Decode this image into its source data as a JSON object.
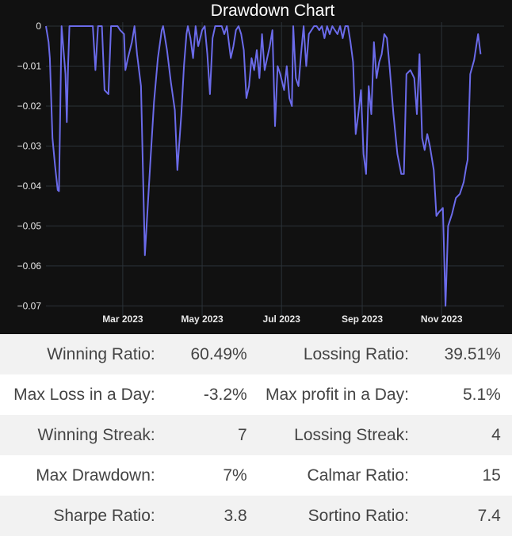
{
  "chart_data": {
    "type": "line",
    "title": "Drawdown Chart",
    "xlabel": "",
    "ylabel": "",
    "x_ticks": [
      "Mar 2023",
      "May 2023",
      "Jul 2023",
      "Sep 2023",
      "Nov 2023"
    ],
    "x_tick_days": [
      59,
      120,
      181,
      243,
      304
    ],
    "y_ticks": [
      "0",
      "−0.01",
      "−0.02",
      "−0.03",
      "−0.04",
      "−0.05",
      "−0.06",
      "−0.07"
    ],
    "ylim": [
      -0.0725,
      0.001
    ],
    "x_day_range": [
      0,
      352
    ],
    "grid": true,
    "line_color": "#6b6bea",
    "series": [
      {
        "values": [
          [
            0,
            0
          ],
          [
            2,
            -0.004
          ],
          [
            3,
            -0.008
          ],
          [
            5,
            -0.028
          ],
          [
            7,
            -0.035
          ],
          [
            9,
            -0.041
          ],
          [
            10,
            -0.0413
          ],
          [
            12,
            -0.0
          ],
          [
            15,
            -0.012
          ],
          [
            16,
            -0.024
          ],
          [
            17,
            -0.01
          ],
          [
            18,
            0
          ],
          [
            20,
            0
          ],
          [
            25,
            0
          ],
          [
            28,
            0
          ],
          [
            30,
            0
          ],
          [
            33,
            0
          ],
          [
            36,
            0
          ],
          [
            38,
            -0.011
          ],
          [
            40,
            0
          ],
          [
            43,
            0
          ],
          [
            45,
            -0.016
          ],
          [
            48,
            -0.017
          ],
          [
            50,
            0
          ],
          [
            55,
            0
          ],
          [
            57,
            -0.001
          ],
          [
            60,
            -0.002
          ],
          [
            61,
            -0.011
          ],
          [
            63,
            -0.008
          ],
          [
            66,
            -0.004
          ],
          [
            68,
            0
          ],
          [
            70,
            -0.007
          ],
          [
            73,
            -0.015
          ],
          [
            76,
            -0.0573
          ],
          [
            80,
            -0.035
          ],
          [
            83,
            -0.019
          ],
          [
            86,
            -0.008
          ],
          [
            89,
            -0.001
          ],
          [
            90,
            0
          ],
          [
            93,
            -0.006
          ],
          [
            96,
            -0.014
          ],
          [
            99,
            -0.021
          ],
          [
            101,
            -0.036
          ],
          [
            104,
            -0.022
          ],
          [
            106,
            -0.01
          ],
          [
            108,
            -0.002
          ],
          [
            109,
            0
          ],
          [
            111,
            -0.003
          ],
          [
            113,
            -0.008
          ],
          [
            115,
            0
          ],
          [
            117,
            -0.005
          ],
          [
            120,
            -0.001
          ],
          [
            122,
            0
          ],
          [
            124,
            -0.007
          ],
          [
            126,
            -0.017
          ],
          [
            128,
            -0.003
          ],
          [
            130,
            0
          ],
          [
            135,
            0
          ],
          [
            137,
            -0.002
          ],
          [
            139,
            0
          ],
          [
            142,
            -0.008
          ],
          [
            144,
            -0.005
          ],
          [
            146,
            -0.001
          ],
          [
            148,
            0
          ],
          [
            150,
            -0.002
          ],
          [
            152,
            -0.006
          ],
          [
            154,
            -0.018
          ],
          [
            156,
            -0.015
          ],
          [
            158,
            -0.008
          ],
          [
            160,
            -0.011
          ],
          [
            162,
            -0.006
          ],
          [
            164,
            -0.013
          ],
          [
            166,
            -0.002
          ],
          [
            168,
            -0.011
          ],
          [
            170,
            -0.008
          ],
          [
            172,
            -0.005
          ],
          [
            174,
            -0.001
          ],
          [
            176,
            -0.025
          ],
          [
            178,
            -0.01
          ],
          [
            180,
            -0.012
          ],
          [
            183,
            -0.016
          ],
          [
            185,
            -0.01
          ],
          [
            187,
            -0.018
          ],
          [
            189,
            -0.02
          ],
          [
            190,
            0
          ],
          [
            192,
            -0.013
          ],
          [
            194,
            -0.015
          ],
          [
            196,
            -0.007
          ],
          [
            198,
            0
          ],
          [
            200,
            -0.01
          ],
          [
            202,
            -0.002
          ],
          [
            204,
            -0.001
          ],
          [
            206,
            0
          ],
          [
            208,
            0
          ],
          [
            210,
            -0.001
          ],
          [
            212,
            0
          ],
          [
            214,
            -0.003
          ],
          [
            216,
            0
          ],
          [
            218,
            -0.002
          ],
          [
            220,
            0
          ],
          [
            222,
            -0.001
          ],
          [
            224,
            -0.002
          ],
          [
            226,
            0
          ],
          [
            228,
            -0.003
          ],
          [
            230,
            0
          ],
          [
            232,
            0
          ],
          [
            234,
            -0.004
          ],
          [
            236,
            -0.009
          ],
          [
            238,
            -0.027
          ],
          [
            240,
            -0.022
          ],
          [
            242,
            -0.016
          ],
          [
            244,
            -0.032
          ],
          [
            246,
            -0.037
          ],
          [
            248,
            -0.015
          ],
          [
            250,
            -0.022
          ],
          [
            252,
            -0.004
          ],
          [
            254,
            -0.013
          ],
          [
            256,
            -0.009
          ],
          [
            258,
            -0.007
          ],
          [
            260,
            -0.002
          ],
          [
            262,
            -0.003
          ],
          [
            264,
            -0.01
          ],
          [
            267,
            -0.022
          ],
          [
            270,
            -0.032
          ],
          [
            273,
            -0.037
          ],
          [
            275,
            -0.037
          ],
          [
            277,
            -0.012
          ],
          [
            280,
            -0.011
          ],
          [
            283,
            -0.013
          ],
          [
            285,
            -0.022
          ],
          [
            287,
            -0.007
          ],
          [
            289,
            -0.028
          ],
          [
            291,
            -0.031
          ],
          [
            293,
            -0.027
          ],
          [
            295,
            -0.03
          ],
          [
            298,
            -0.036
          ],
          [
            300,
            -0.0475
          ],
          [
            302,
            -0.0465
          ],
          [
            305,
            -0.0455
          ],
          [
            307,
            -0.07
          ],
          [
            309,
            -0.05
          ],
          [
            312,
            -0.047
          ],
          [
            315,
            -0.043
          ],
          [
            318,
            -0.042
          ],
          [
            321,
            -0.039
          ],
          [
            323,
            -0.035
          ],
          [
            324,
            -0.0335
          ],
          [
            326,
            -0.012
          ],
          [
            329,
            -0.0085
          ],
          [
            332,
            -0.002
          ],
          [
            334,
            -0.007
          ]
        ]
      }
    ]
  },
  "stats": {
    "rows": [
      {
        "l1": "Winning Ratio:",
        "v1": "60.49%",
        "l2": "Lossing Ratio:",
        "v2": "39.51%"
      },
      {
        "l1": "Max Loss in a Day:",
        "v1": "-3.2%",
        "l2": "Max profit in a Day:",
        "v2": "5.1%"
      },
      {
        "l1": "Winning Streak:",
        "v1": "7",
        "l2": "Lossing Streak:",
        "v2": "4"
      },
      {
        "l1": "Max Drawdown:",
        "v1": "7%",
        "l2": "Calmar Ratio:",
        "v2": "15"
      },
      {
        "l1": "Sharpe Ratio:",
        "v1": "3.8",
        "l2": "Sortino Ratio:",
        "v2": "7.4"
      }
    ]
  }
}
